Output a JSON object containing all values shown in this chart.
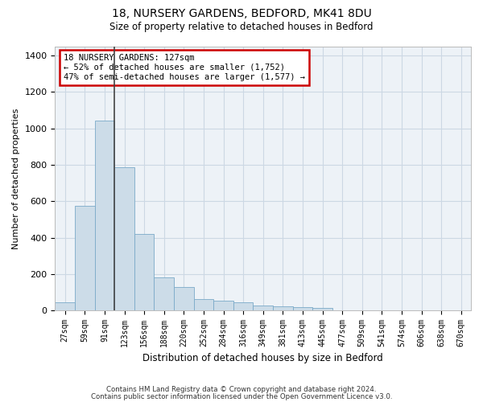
{
  "title1": "18, NURSERY GARDENS, BEDFORD, MK41 8DU",
  "title2": "Size of property relative to detached houses in Bedford",
  "xlabel": "Distribution of detached houses by size in Bedford",
  "ylabel": "Number of detached properties",
  "bar_labels": [
    "27sqm",
    "59sqm",
    "91sqm",
    "123sqm",
    "156sqm",
    "188sqm",
    "220sqm",
    "252sqm",
    "284sqm",
    "316sqm",
    "349sqm",
    "381sqm",
    "413sqm",
    "445sqm",
    "477sqm",
    "509sqm",
    "541sqm",
    "574sqm",
    "606sqm",
    "638sqm",
    "670sqm"
  ],
  "bar_values": [
    45,
    575,
    1040,
    785,
    420,
    180,
    128,
    63,
    55,
    45,
    28,
    25,
    18,
    12,
    0,
    0,
    0,
    0,
    0,
    0,
    0
  ],
  "bar_color": "#ccdce8",
  "bar_edge_color": "#7aaac8",
  "annotation_line1": "18 NURSERY GARDENS: 127sqm",
  "annotation_line2": "← 52% of detached houses are smaller (1,752)",
  "annotation_line3": "47% of semi-detached houses are larger (1,577) →",
  "vline_color": "#444444",
  "annotation_box_edge": "#cc0000",
  "footnote1": "Contains HM Land Registry data © Crown copyright and database right 2024.",
  "footnote2": "Contains public sector information licensed under the Open Government Licence v3.0.",
  "ylim": [
    0,
    1450
  ],
  "yticks": [
    0,
    200,
    400,
    600,
    800,
    1000,
    1200,
    1400
  ],
  "grid_color": "#ccd8e4",
  "bg_color": "#edf2f7"
}
